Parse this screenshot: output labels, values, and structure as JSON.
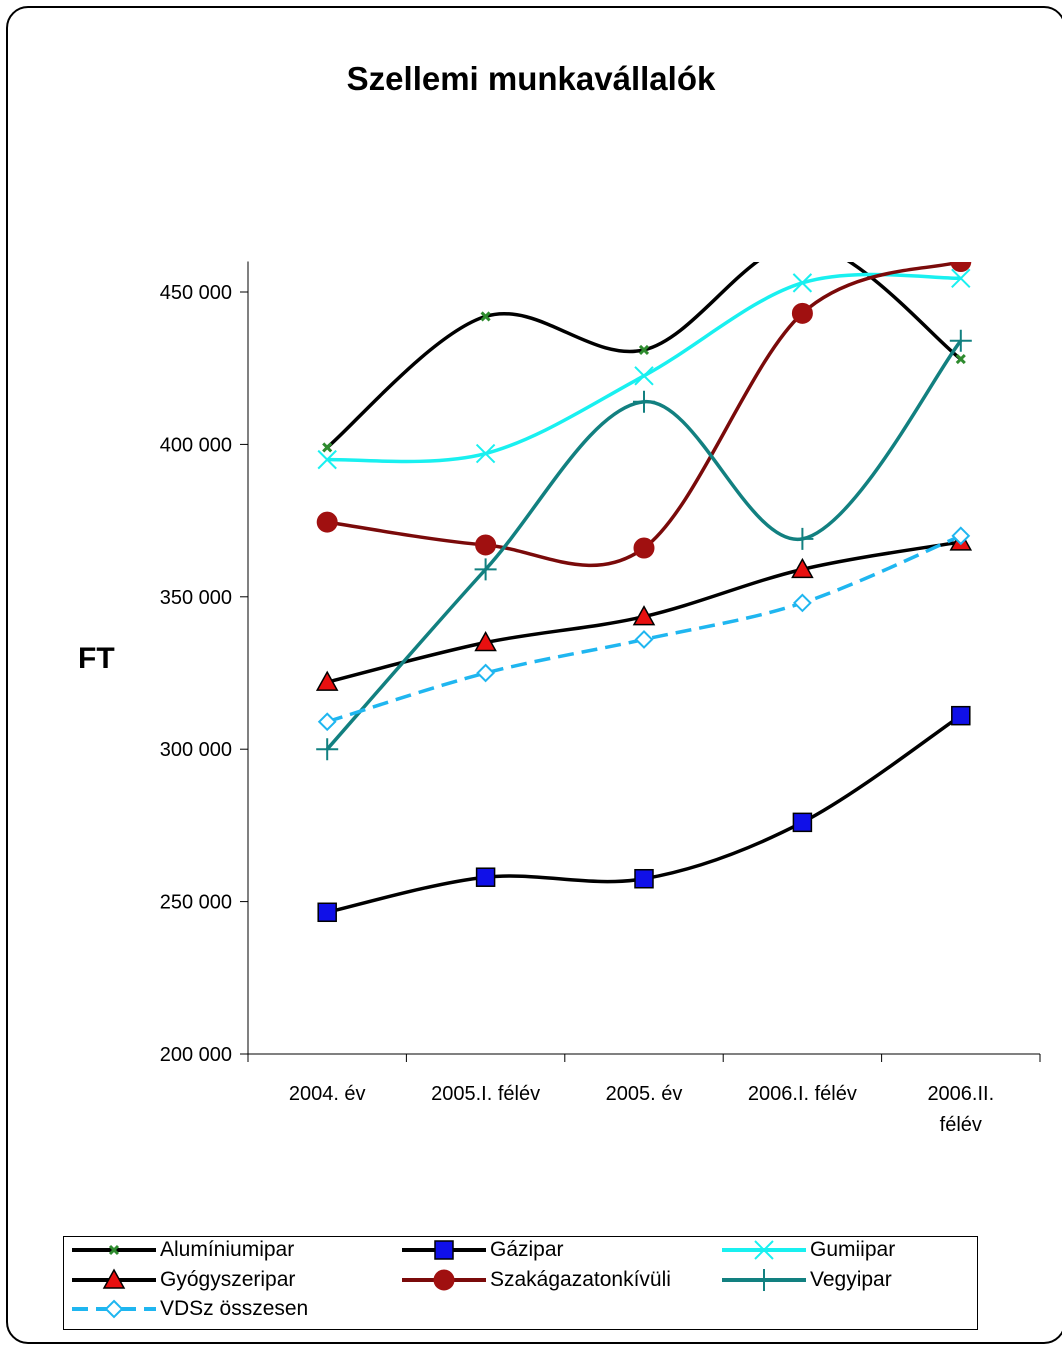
{
  "chart_data": {
    "type": "line",
    "title": "Szellemi munkavállalók",
    "ylabel": "FT",
    "xlabel": "",
    "categories": [
      "2004. év",
      "2005.I. félév",
      "2005. év",
      "2006.I. félév",
      "2006.II. félév"
    ],
    "category_lines": [
      [
        "2004. év"
      ],
      [
        "2005.I. félév"
      ],
      [
        "2005. év"
      ],
      [
        "2006.I. félév"
      ],
      [
        "2006.II.",
        "félév"
      ]
    ],
    "ylim": [
      200000,
      460000
    ],
    "yticks": [
      200000,
      250000,
      300000,
      350000,
      400000,
      450000
    ],
    "ytick_labels": [
      "200 000",
      "250 000",
      "300 000",
      "350 000",
      "400 000",
      "450 000"
    ],
    "grid": false,
    "legend_position": "bottom",
    "series": [
      {
        "name": "Alumíniumipar",
        "values": [
          399000,
          442000,
          431000,
          466000,
          428000
        ],
        "color": "#000000",
        "marker": "asterisk",
        "marker_color": "#2e8b2e",
        "dash": false
      },
      {
        "name": "Gázipar",
        "values": [
          246500,
          258000,
          257500,
          276000,
          311000
        ],
        "color": "#000000",
        "marker": "square",
        "marker_color": "#1010e8",
        "dash": false
      },
      {
        "name": "Gumiipar",
        "values": [
          395000,
          397000,
          422500,
          453000,
          454500
        ],
        "color": "#19f0f0",
        "marker": "x",
        "marker_color": "#19f0f0",
        "dash": false
      },
      {
        "name": "Gyógyszeripar",
        "values": [
          322000,
          335000,
          343500,
          359000,
          368000
        ],
        "color": "#000000",
        "marker": "triangle",
        "marker_color": "#e81010",
        "dash": false
      },
      {
        "name": "Szakágazatonkívüli",
        "values": [
          374500,
          367000,
          366000,
          443000,
          460000
        ],
        "color": "#7a0a0a",
        "marker": "circle",
        "marker_color": "#a01010",
        "dash": false
      },
      {
        "name": "Vegyipar",
        "values": [
          300000,
          359000,
          414000,
          369000,
          434000
        ],
        "color": "#128080",
        "marker": "plus",
        "marker_color": "#128080",
        "dash": false
      },
      {
        "name": "VDSz összesen",
        "values": [
          309000,
          325000,
          336000,
          348000,
          370000
        ],
        "color": "#1fb6f0",
        "marker": "diamond",
        "marker_color": "#1fb6f0",
        "dash": true
      }
    ]
  }
}
